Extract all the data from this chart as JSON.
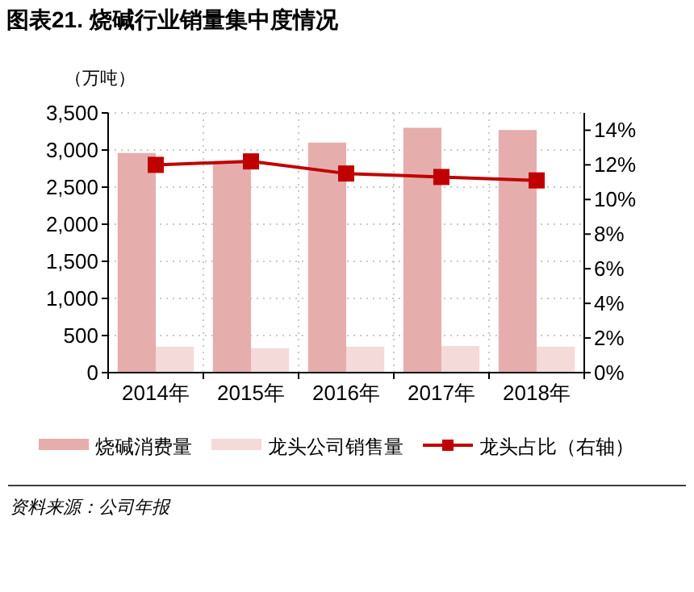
{
  "chart_data": {
    "type": "bar",
    "title": "图表21. 烧碱行业销量集中度情况",
    "ylabel": "（万吨）",
    "categories": [
      "2014年",
      "2015年",
      "2016年",
      "2017年",
      "2018年"
    ],
    "series": [
      {
        "name": "烧碱消费量",
        "color": "#e6adad",
        "values": [
          2960,
          2850,
          3100,
          3300,
          3270
        ]
      },
      {
        "name": "龙头公司销售量",
        "color": "#f5dada",
        "values": [
          350,
          330,
          350,
          360,
          350
        ]
      },
      {
        "name": "龙头占比（右轴）",
        "type": "line",
        "axis": "y2",
        "color": "#c00000",
        "marker": "square",
        "values": [
          12.0,
          12.2,
          11.5,
          11.3,
          11.1
        ]
      }
    ],
    "ylim": [
      0,
      3500
    ],
    "yticks": [
      0,
      500,
      {
        "value": 1000,
        "label": "1,000"
      },
      {
        "value": 1500,
        "label": "1,500"
      },
      {
        "value": 2000,
        "label": "2,000"
      },
      {
        "value": 2500,
        "label": "2,500"
      },
      {
        "value": 3000,
        "label": "3,000"
      },
      {
        "value": 3500,
        "label": "3,500"
      }
    ],
    "y2lim": [
      0,
      15
    ],
    "y2ticks": [
      {
        "value": 0,
        "label": "0%"
      },
      {
        "value": 2,
        "label": "2%"
      },
      {
        "value": 4,
        "label": "4%"
      },
      {
        "value": 6,
        "label": "6%"
      },
      {
        "value": 8,
        "label": "8%"
      },
      {
        "value": 10,
        "label": "10%"
      },
      {
        "value": 12,
        "label": "12%"
      },
      {
        "value": 14,
        "label": "14%"
      }
    ],
    "grid": true,
    "legend": "bottom",
    "annotations": [
      "资料来源：公司年报"
    ]
  }
}
